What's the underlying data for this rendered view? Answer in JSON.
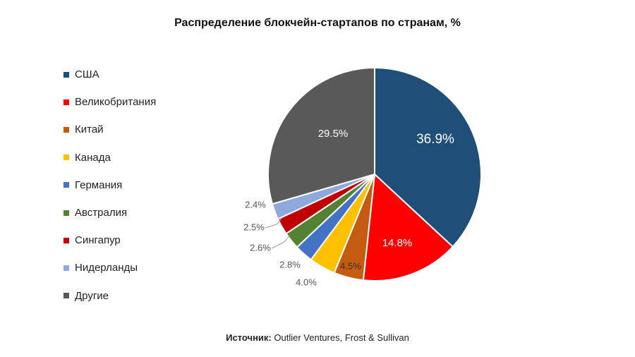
{
  "chart_data": {
    "type": "pie",
    "title": "Распределение блокчейн-стартапов по странам, %",
    "categories": [
      "США",
      "Великобритания",
      "Китай",
      "Канада",
      "Германия",
      "Австралия",
      "Сингапур",
      "Нидерланды",
      "Другие"
    ],
    "values": [
      36.9,
      14.8,
      4.5,
      4.0,
      2.8,
      2.6,
      2.5,
      2.4,
      29.5
    ],
    "data_labels": [
      "36.9%",
      "14.8%",
      "4.5%",
      "4.0%",
      "2.8%",
      "2.6%",
      "2.5%",
      "2.4%",
      "29.5%"
    ],
    "colors": [
      "#1f4e79",
      "#ff0000",
      "#c55a11",
      "#ffc000",
      "#4472c4",
      "#548235",
      "#c00000",
      "#8eaadb",
      "#595959"
    ],
    "legend_position": "left",
    "start_angle": "top, clockwise"
  },
  "source": {
    "label": "Источник:",
    "text": " Outlier Ventures, Frost & Sullivan"
  }
}
